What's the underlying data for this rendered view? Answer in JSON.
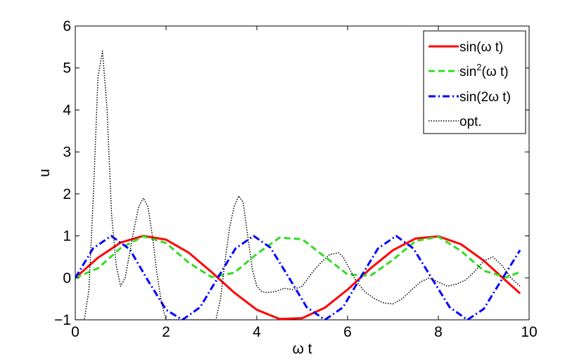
{
  "chart_data": {
    "type": "line",
    "title": "",
    "xlabel": "ω t",
    "ylabel": "u",
    "xlim": [
      0,
      10
    ],
    "ylim": [
      -1,
      6
    ],
    "grid": false,
    "legend_position": "top-right",
    "x_ticks": [
      0,
      2,
      4,
      6,
      8,
      10
    ],
    "y_ticks": [
      -1,
      0,
      1,
      2,
      3,
      4,
      5,
      6
    ],
    "x_tick_labels": [
      "0",
      "2",
      "4",
      "6",
      "8",
      "10"
    ],
    "y_tick_labels": [
      "−1",
      "0",
      "1",
      "2",
      "3",
      "4",
      "5",
      "6"
    ],
    "legend": [
      {
        "label": "sin(ω t)",
        "sup": ""
      },
      {
        "label": "sin",
        "sup": "2",
        "suffix": "(ω t)"
      },
      {
        "label": "sin(2ω t)",
        "sup": ""
      },
      {
        "label": "opt.",
        "sup": ""
      }
    ],
    "series": [
      {
        "color": "#ff0000",
        "dash": "solid",
        "x": [
          0,
          0.5,
          1,
          1.5,
          2,
          2.5,
          3,
          3.5,
          4,
          4.5,
          5,
          5.5,
          6,
          6.5,
          7,
          7.5,
          8,
          8.5,
          9,
          9.5,
          9.8
        ],
        "y": [
          0,
          0.48,
          0.84,
          1.0,
          0.91,
          0.6,
          0.14,
          -0.35,
          -0.76,
          -0.98,
          -0.96,
          -0.71,
          -0.28,
          0.22,
          0.66,
          0.94,
          0.99,
          0.8,
          0.41,
          -0.08,
          -0.37
        ]
      },
      {
        "color": "#33dd22",
        "dash": "dashed",
        "x": [
          0,
          0.5,
          1,
          1.5,
          2,
          2.5,
          3,
          3.5,
          4,
          4.5,
          5,
          5.5,
          6,
          6.5,
          7,
          7.5,
          8,
          8.5,
          9,
          9.5,
          9.8
        ],
        "y": [
          0,
          0.23,
          0.71,
          0.99,
          0.83,
          0.36,
          0.02,
          0.12,
          0.57,
          0.96,
          0.92,
          0.5,
          0.08,
          0.05,
          0.43,
          0.88,
          0.98,
          0.64,
          0.17,
          0.01,
          0.14
        ]
      },
      {
        "color": "#0000ff",
        "dash": "dashdot",
        "x": [
          0,
          0.39,
          0.79,
          1.2,
          1.6,
          2.0,
          2.36,
          2.75,
          3.14,
          3.53,
          3.93,
          4.3,
          4.71,
          5.1,
          5.5,
          5.9,
          6.28,
          6.67,
          7.07,
          7.45,
          7.85,
          8.25,
          8.64,
          9.0,
          9.42,
          9.8
        ],
        "y": [
          0,
          0.7,
          1.0,
          0.68,
          -0.06,
          -0.76,
          -1.0,
          -0.7,
          0,
          0.7,
          1.0,
          0.72,
          0,
          -0.7,
          -1.0,
          -0.7,
          0,
          0.7,
          1.0,
          0.7,
          0,
          -0.7,
          -1.0,
          -0.74,
          0,
          0.66
        ]
      },
      {
        "color": "#000000",
        "dash": "dotted",
        "x": [
          0,
          0.2,
          0.3,
          0.4,
          0.5,
          0.6,
          0.7,
          0.8,
          0.9,
          1.0,
          1.1,
          1.2,
          1.3,
          1.4,
          1.5,
          1.6,
          1.7,
          1.8,
          1.9,
          2.0,
          2.1,
          2.2,
          2.3,
          2.5,
          2.8,
          3.1,
          3.2,
          3.3,
          3.4,
          3.5,
          3.6,
          3.7,
          3.8,
          3.9,
          4.0,
          4.1,
          4.2,
          4.4,
          4.6,
          4.8,
          5.0,
          5.2,
          5.4,
          5.6,
          5.8,
          5.9,
          6.0,
          6.2,
          6.4,
          6.6,
          6.8,
          7.0,
          7.2,
          7.4,
          7.6,
          7.8,
          8.0,
          8.2,
          8.4,
          8.6,
          8.8,
          9.0,
          9.2,
          9.4,
          9.6,
          9.8
        ],
        "y": [
          -1,
          -1,
          -0.3,
          2.0,
          4.8,
          5.4,
          4.0,
          1.5,
          0.3,
          -0.2,
          0.0,
          0.6,
          1.2,
          1.7,
          1.9,
          1.7,
          1.0,
          0.1,
          -0.6,
          -1.0,
          -1.0,
          -1.0,
          -1.0,
          -1.0,
          -1.0,
          -1.0,
          -0.5,
          0.4,
          1.2,
          1.7,
          1.95,
          1.8,
          1.0,
          0.2,
          -0.2,
          -0.32,
          -0.35,
          -0.33,
          -0.25,
          -0.28,
          -0.2,
          0.1,
          0.35,
          0.55,
          0.6,
          0.5,
          0.3,
          -0.1,
          -0.35,
          -0.5,
          -0.6,
          -0.62,
          -0.5,
          -0.3,
          -0.1,
          0.0,
          -0.1,
          -0.2,
          -0.15,
          -0.05,
          0.15,
          0.4,
          0.5,
          0.3,
          0.0,
          -0.2
        ]
      }
    ]
  }
}
